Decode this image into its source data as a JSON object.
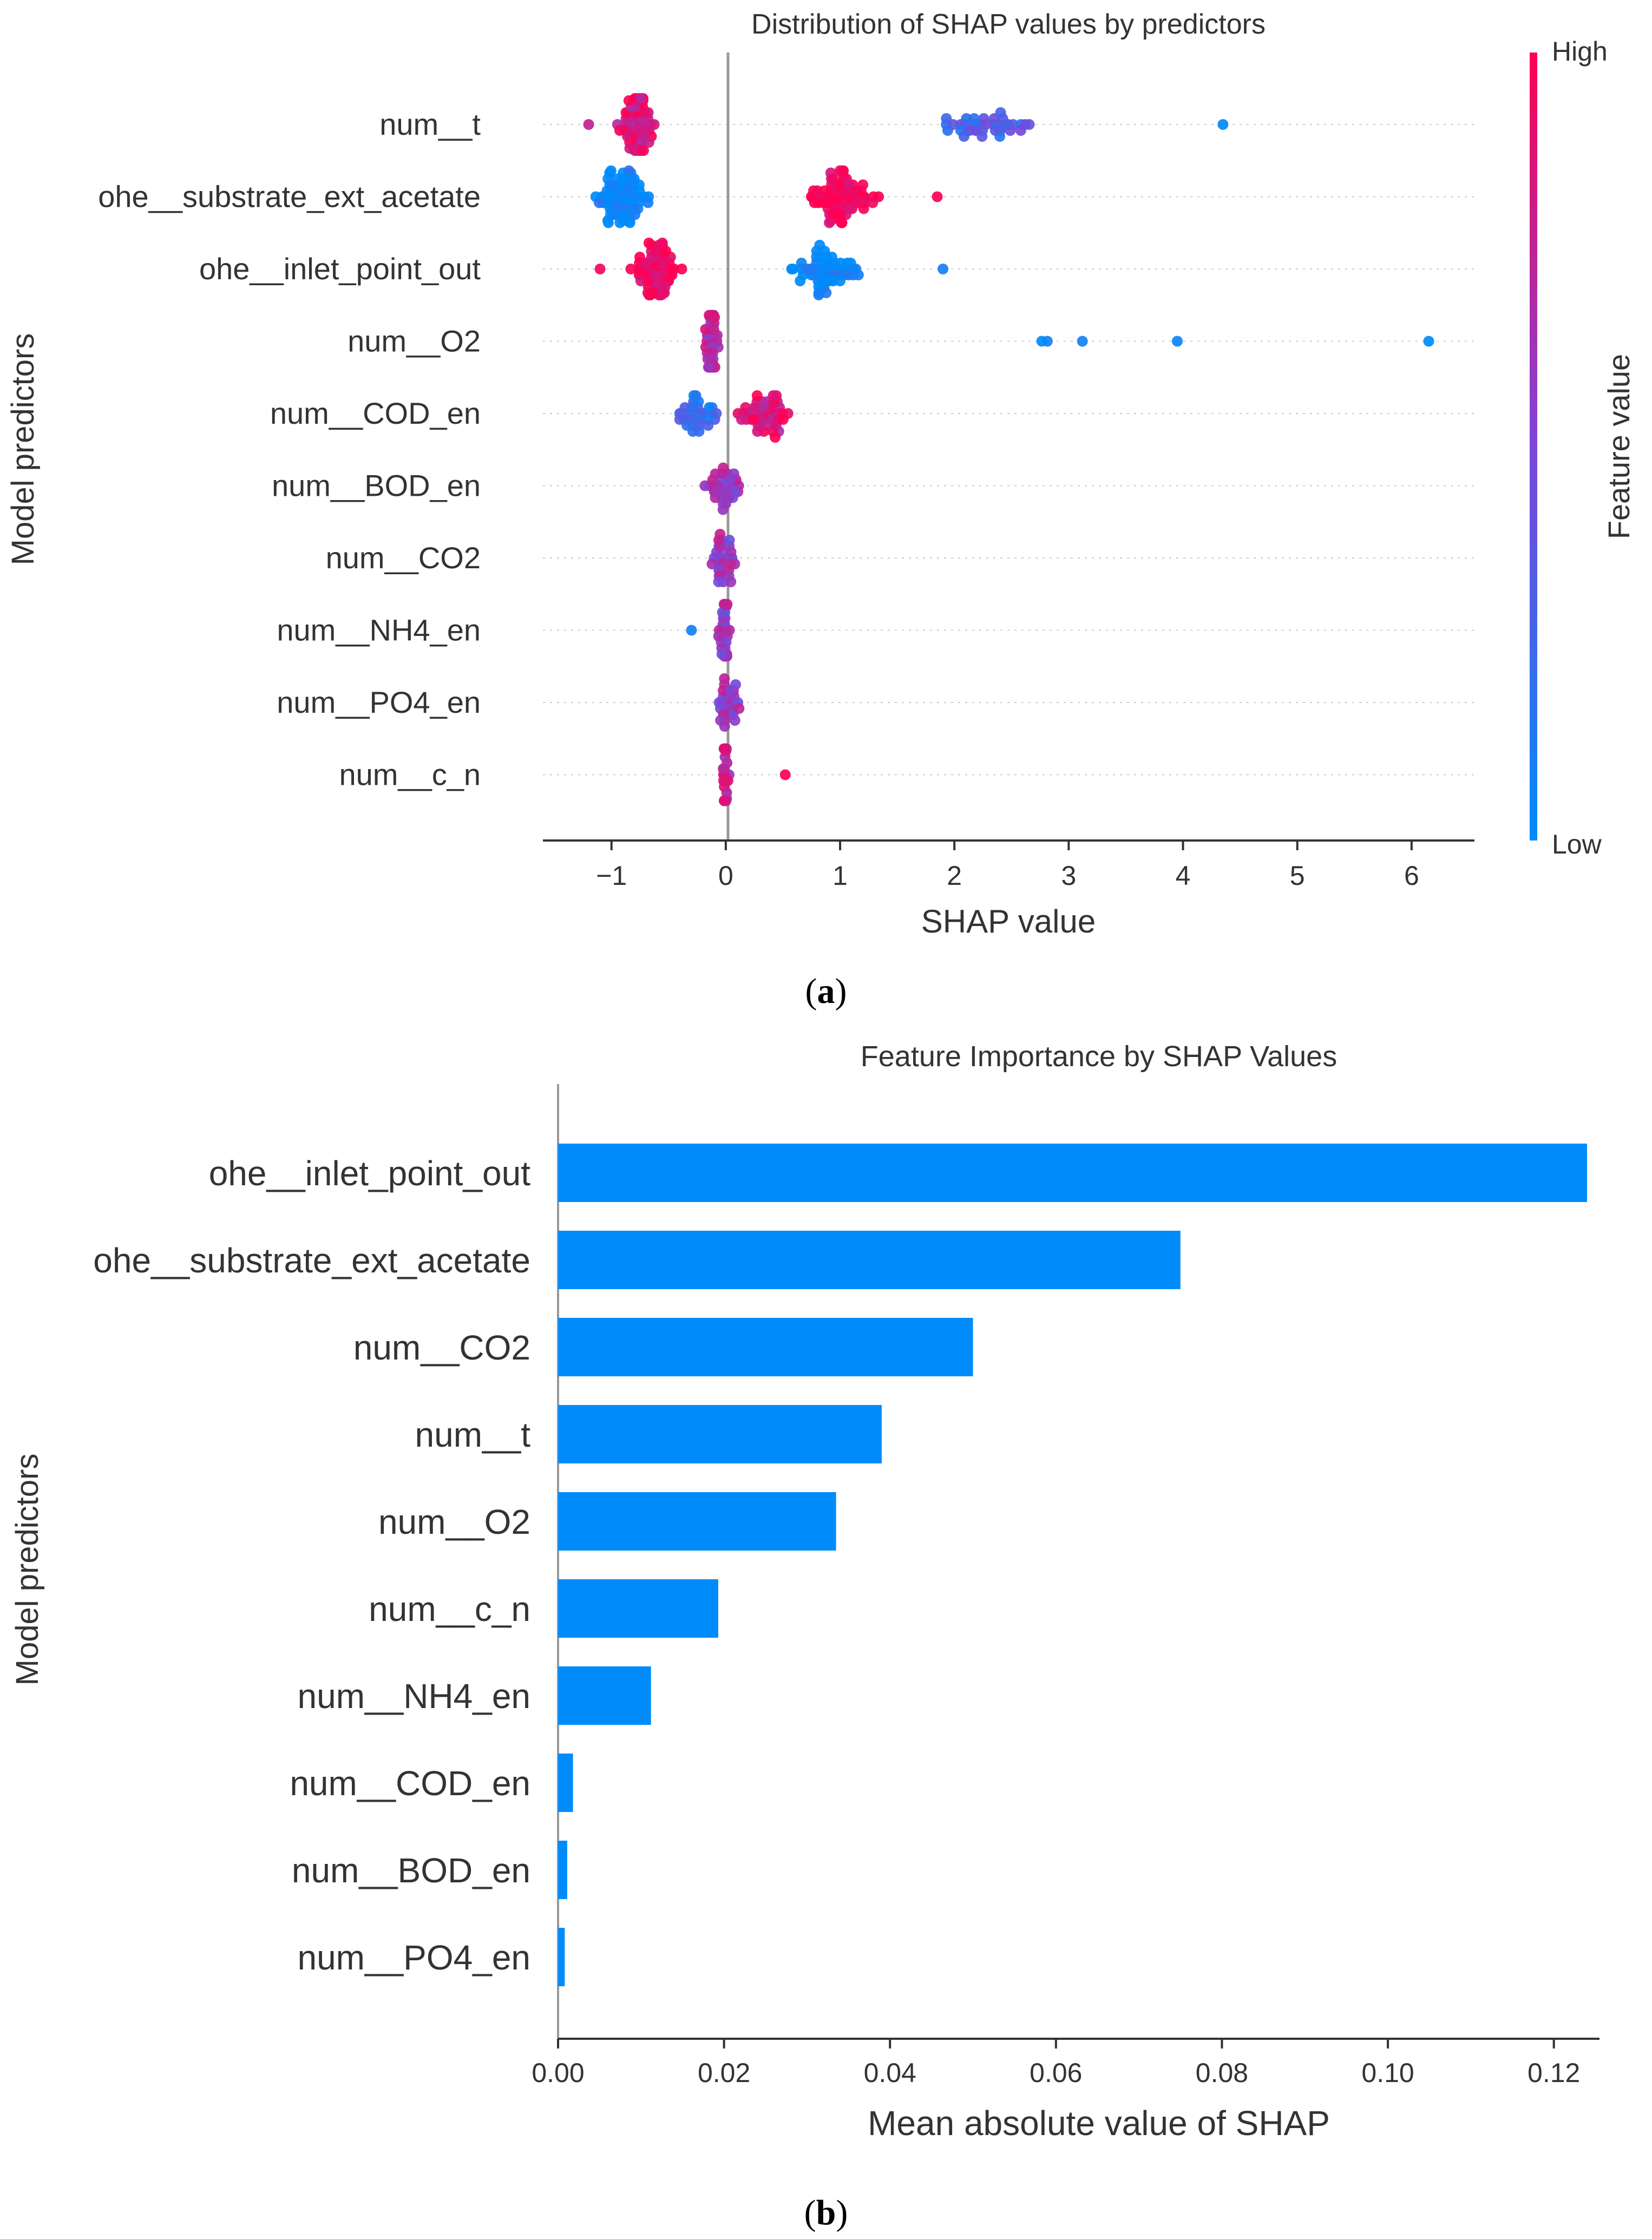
{
  "chart_data": [
    {
      "type": "scatter",
      "subtype": "shap-beeswarm",
      "panel_label": "a",
      "title": "Distribution of SHAP values by predictors",
      "xlabel": "SHAP value",
      "ylabel": "Model predictors",
      "xlim": [
        -1.6,
        6.55
      ],
      "xticks": [
        -1,
        0,
        1,
        2,
        3,
        4,
        5,
        6
      ],
      "xtick_labels": [
        "−1",
        "0",
        "1",
        "2",
        "3",
        "4",
        "5",
        "6"
      ],
      "grid": false,
      "colorbar": {
        "label": "Feature value",
        "high_label": "High",
        "low_label": "Low",
        "high_color": "#ff0052",
        "mid_color": "#7e45d8",
        "low_color": "#008bfb"
      },
      "series": [
        {
          "name": "num__t",
          "clusters": [
            {
              "min": -1.0,
              "max": -0.55,
              "count": 70,
              "hue": 0.85
            },
            {
              "min": 1.7,
              "max": 2.85,
              "count": 40,
              "hue": 0.3
            },
            {
              "min": -1.2,
              "max": -1.2,
              "count": 1,
              "hue": 0.6
            },
            {
              "min": 4.35,
              "max": 4.35,
              "count": 1,
              "hue": 0.0
            }
          ]
        },
        {
          "name": "ohe__substrate_ext_acetate",
          "clusters": [
            {
              "min": -1.25,
              "max": -0.6,
              "count": 75,
              "hue": 0.0
            },
            {
              "min": 0.65,
              "max": 1.4,
              "count": 80,
              "hue": 1.0
            },
            {
              "min": 1.85,
              "max": 1.85,
              "count": 1,
              "hue": 1.0
            }
          ]
        },
        {
          "name": "ohe__inlet_point_out",
          "clusters": [
            {
              "min": -0.88,
              "max": -0.33,
              "count": 70,
              "hue": 1.0
            },
            {
              "min": -1.1,
              "max": -1.1,
              "count": 1,
              "hue": 1.0
            },
            {
              "min": 0.45,
              "max": 1.3,
              "count": 60,
              "hue": 0.0
            },
            {
              "min": 1.9,
              "max": 1.9,
              "count": 1,
              "hue": 0.0
            }
          ]
        },
        {
          "name": "num__O2",
          "clusters": [
            {
              "min": -0.2,
              "max": -0.05,
              "count": 40,
              "hue": 0.7
            },
            {
              "min": 2.75,
              "max": 2.85,
              "count": 2,
              "hue": 0.0
            },
            {
              "min": 3.12,
              "max": 3.12,
              "count": 1,
              "hue": 0.0
            },
            {
              "min": 3.95,
              "max": 3.95,
              "count": 1,
              "hue": 0.0
            },
            {
              "min": 6.15,
              "max": 6.15,
              "count": 1,
              "hue": 0.0
            }
          ]
        },
        {
          "name": "num__COD_en",
          "clusters": [
            {
              "min": -0.5,
              "max": 0.0,
              "count": 35,
              "hue": 0.2
            },
            {
              "min": 0.0,
              "max": 0.7,
              "count": 50,
              "hue": 0.85
            }
          ]
        },
        {
          "name": "num__BOD_en",
          "clusters": [
            {
              "min": -0.22,
              "max": 0.18,
              "count": 35,
              "hue": 0.6
            }
          ]
        },
        {
          "name": "num__CO2",
          "clusters": [
            {
              "min": -0.18,
              "max": 0.12,
              "count": 30,
              "hue": 0.6
            }
          ]
        },
        {
          "name": "num__NH4_en",
          "clusters": [
            {
              "min": -0.3,
              "max": -0.3,
              "count": 1,
              "hue": 0.0
            },
            {
              "min": -0.1,
              "max": 0.05,
              "count": 28,
              "hue": 0.6
            }
          ]
        },
        {
          "name": "num__PO4_en",
          "clusters": [
            {
              "min": -0.12,
              "max": 0.15,
              "count": 30,
              "hue": 0.6
            }
          ]
        },
        {
          "name": "num__c_n",
          "clusters": [
            {
              "min": -0.05,
              "max": 0.04,
              "count": 28,
              "hue": 0.75
            },
            {
              "min": 0.52,
              "max": 0.52,
              "count": 1,
              "hue": 0.9
            }
          ]
        }
      ]
    },
    {
      "type": "bar",
      "orientation": "horizontal",
      "panel_label": "b",
      "title": "Feature Importance by SHAP Values",
      "xlabel": "Mean absolute value of SHAP",
      "ylabel": "Model predictors",
      "xlim": [
        0,
        0.1255
      ],
      "xticks": [
        0.0,
        0.02,
        0.04,
        0.06,
        0.08,
        0.1,
        0.12
      ],
      "xtick_labels": [
        "0.00",
        "0.02",
        "0.04",
        "0.06",
        "0.08",
        "0.10",
        "0.12"
      ],
      "grid": false,
      "bar_color": "#008bfb",
      "categories": [
        "ohe__inlet_point_out",
        "ohe__substrate_ext_acetate",
        "num__CO2",
        "num__t",
        "num__O2",
        "num__c_n",
        "num__NH4_en",
        "num__COD_en",
        "num__BOD_en",
        "num__PO4_en"
      ],
      "values": [
        0.124,
        0.075,
        0.05,
        0.039,
        0.0335,
        0.0193,
        0.0112,
        0.0018,
        0.0011,
        0.0008
      ]
    }
  ]
}
